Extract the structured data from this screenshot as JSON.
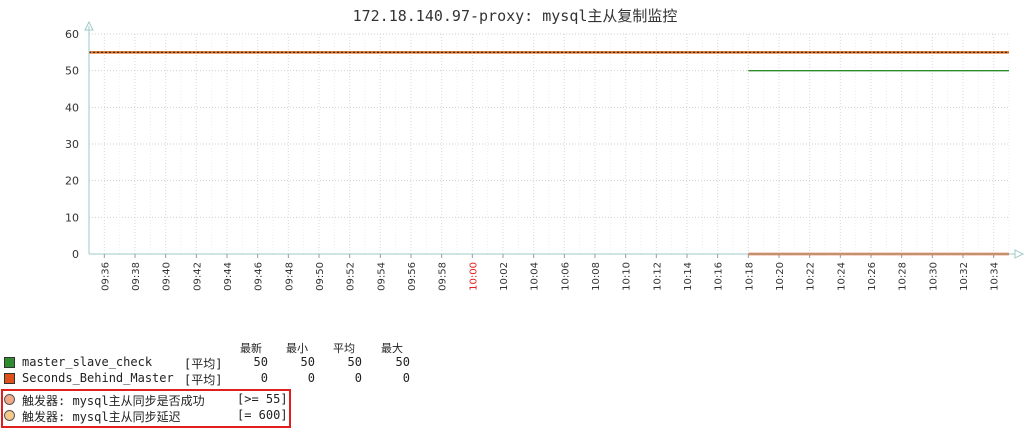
{
  "chart_data": {
    "type": "line",
    "title": "172.18.140.97-proxy: mysql主从复制监控",
    "ylim": [
      0,
      60
    ],
    "y_ticks": [
      "0",
      "10",
      "20",
      "30",
      "40",
      "50",
      "60"
    ],
    "x_ticks": [
      "09:36",
      "09:38",
      "09:40",
      "09:42",
      "09:44",
      "09:46",
      "09:48",
      "09:50",
      "09:52",
      "09:54",
      "09:56",
      "09:58",
      "10:00",
      "10:02",
      "10:04",
      "10:06",
      "10:08",
      "10:10",
      "10:12",
      "10:14",
      "10:16",
      "10:18",
      "10:20",
      "10:22",
      "10:24",
      "10:26",
      "10:28",
      "10:30",
      "10:32",
      "10:34"
    ],
    "x_range": [
      "09:35",
      "10:35"
    ],
    "grid": true,
    "series": [
      {
        "name": "master_slave_check",
        "color": "#2e8b2e",
        "x": [
          "10:18",
          "10:35"
        ],
        "y": [
          50,
          50
        ]
      },
      {
        "name": "Seconds_Behind_Master",
        "color": "#e05a1a",
        "x": [
          "10:18",
          "10:35"
        ],
        "y": [
          0,
          0
        ]
      }
    ],
    "triggers": [
      {
        "name": "触发器: mysql主从同步是否成功",
        "condition": "[>= 55]",
        "value": 55,
        "color": "#f2a98a"
      },
      {
        "name": "触发器: mysql主从同步延迟",
        "condition": "[= 600]",
        "value": 600,
        "color": "#f5c98a"
      }
    ]
  },
  "legend": {
    "headers": {
      "last": "最新",
      "min": "最小",
      "avg": "平均",
      "max": "最大"
    },
    "rows": [
      {
        "name": "master_slave_check",
        "agg": "[平均]",
        "last": "50",
        "min": "50",
        "avg": "50",
        "max": "50",
        "color": "#2e8b2e"
      },
      {
        "name": "Seconds_Behind_Master",
        "agg": "[平均]",
        "last": "0",
        "min": "0",
        "avg": "0",
        "max": "0",
        "color": "#e0501a"
      }
    ]
  }
}
